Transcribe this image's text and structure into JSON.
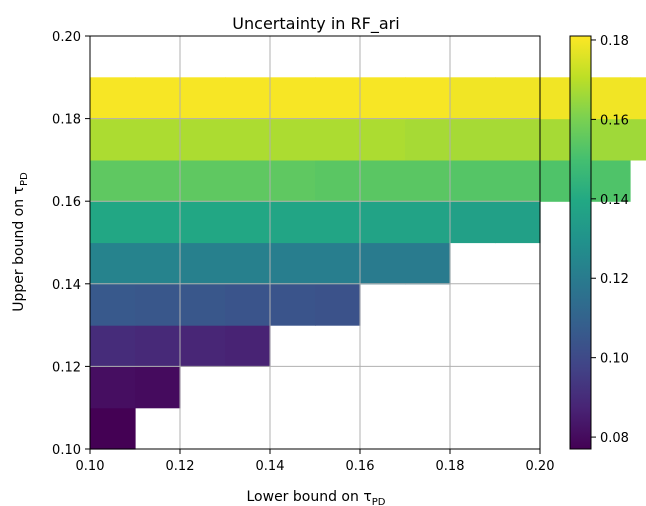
{
  "chart_data": {
    "type": "heatmap",
    "title": "Uncertainty in RF_ari",
    "xlabel": "Lower bound on τ",
    "xlabel_subscript": "PD",
    "ylabel": "Upper bound on τ",
    "ylabel_subscript": "PD",
    "xlim": [
      0.1,
      0.2
    ],
    "ylim": [
      0.1,
      0.2
    ],
    "x_ticks": [
      "0.10",
      "0.12",
      "0.14",
      "0.16",
      "0.18",
      "0.20"
    ],
    "y_ticks": [
      "0.10",
      "0.12",
      "0.14",
      "0.16",
      "0.18",
      "0.20"
    ],
    "grid": true,
    "colormap": "viridis",
    "color_range": [
      0.077,
      0.181
    ],
    "colorbar_ticks": [
      "0.08",
      "0.10",
      "0.12",
      "0.14",
      "0.16",
      "0.18"
    ],
    "cell_size": 0.01,
    "rows": [
      {
        "y": 0.11,
        "x_start": 0.1,
        "values": [
          0.077
        ]
      },
      {
        "y": 0.12,
        "x_start": 0.1,
        "values": [
          0.081,
          0.08
        ]
      },
      {
        "y": 0.13,
        "x_start": 0.1,
        "values": [
          0.09,
          0.089,
          0.088,
          0.087
        ]
      },
      {
        "y": 0.14,
        "x_start": 0.1,
        "values": [
          0.106,
          0.105,
          0.105,
          0.104,
          0.104,
          0.103
        ]
      },
      {
        "y": 0.15,
        "x_start": 0.1,
        "values": [
          0.123,
          0.123,
          0.122,
          0.122,
          0.121,
          0.121,
          0.12,
          0.12
        ]
      },
      {
        "y": 0.16,
        "x_start": 0.1,
        "values": [
          0.139,
          0.139,
          0.139,
          0.139,
          0.138,
          0.138,
          0.137,
          0.137,
          0.136,
          0.136
        ]
      },
      {
        "y": 0.17,
        "x_start": 0.1,
        "values": [
          0.155,
          0.155,
          0.155,
          0.155,
          0.155,
          0.154,
          0.154,
          0.154,
          0.153,
          0.153,
          0.152,
          0.152
        ]
      },
      {
        "y": 0.18,
        "x_start": 0.1,
        "values": [
          0.168,
          0.168,
          0.168,
          0.168,
          0.168,
          0.168,
          0.168,
          0.167,
          0.167,
          0.167,
          0.167,
          0.166,
          0.166,
          0.166
        ]
      },
      {
        "y": 0.19,
        "x_start": 0.1,
        "values": [
          0.18,
          0.18,
          0.18,
          0.18,
          0.18,
          0.18,
          0.18,
          0.18,
          0.179,
          0.179,
          0.179,
          0.179,
          0.179,
          0.179,
          0.178,
          0.178,
          0.178,
          0.178
        ]
      }
    ]
  }
}
